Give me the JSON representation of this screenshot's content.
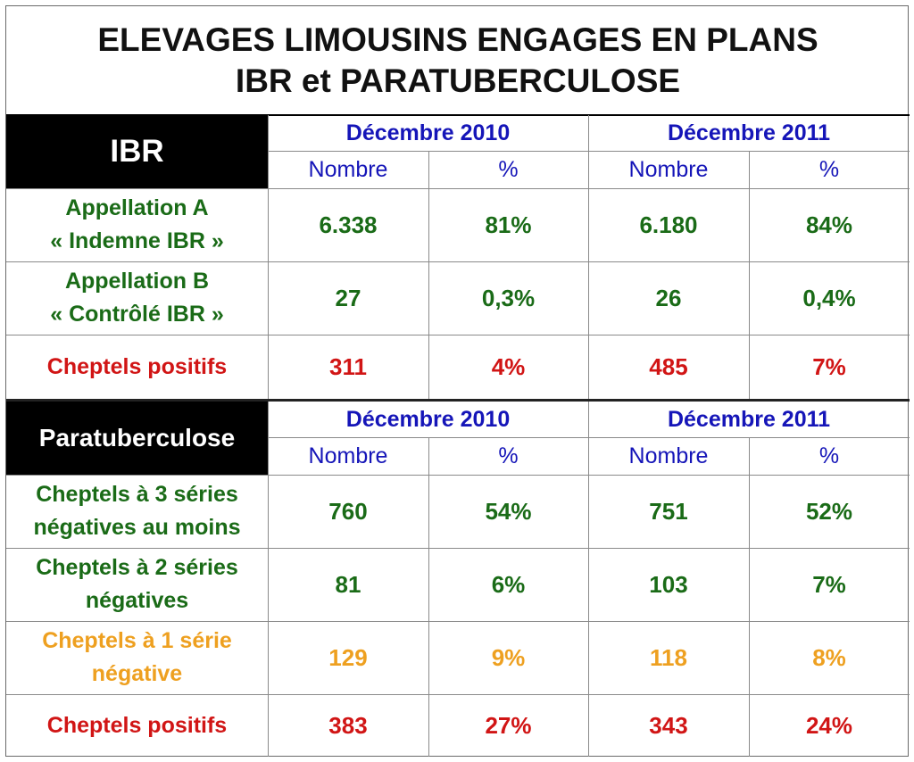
{
  "title": {
    "line1": "ELEVAGES LIMOUSINS ENGAGES EN PLANS",
    "line2": "IBR et PARATUBERCULOSE"
  },
  "colors": {
    "green": "#1a6b17",
    "red": "#d11515",
    "orange": "#eea020",
    "blue": "#1515b8",
    "black": "#000000"
  },
  "ibr": {
    "header": "IBR",
    "period1": "Décembre 2010",
    "period2": "Décembre 2011",
    "sub": {
      "nombre": "Nombre",
      "pct": "%"
    },
    "rows": [
      {
        "label1": "Appellation A",
        "label2": "« Indemne IBR »",
        "n2010": "6.338",
        "p2010": "81%",
        "n2011": "6.180",
        "p2011": "84%",
        "color": "green"
      },
      {
        "label1": "Appellation B",
        "label2": "« Contrôlé IBR »",
        "n2010": "27",
        "p2010": "0,3%",
        "n2011": "26",
        "p2011": "0,4%",
        "color": "green"
      },
      {
        "label1": "Cheptels positifs",
        "label2": "",
        "n2010": "311",
        "p2010": "4%",
        "n2011": "485",
        "p2011": "7%",
        "color": "red"
      }
    ]
  },
  "para": {
    "header": "Paratuberculose",
    "period1": "Décembre 2010",
    "period2": "Décembre 2011",
    "sub": {
      "nombre": "Nombre",
      "pct": "%"
    },
    "rows": [
      {
        "label1": "Cheptels à 3 séries",
        "label2": "négatives au moins",
        "n2010": "760",
        "p2010": "54%",
        "n2011": "751",
        "p2011": "52%",
        "color": "green"
      },
      {
        "label1": "Cheptels à 2 séries",
        "label2": "négatives",
        "n2010": "81",
        "p2010": "6%",
        "n2011": "103",
        "p2011": "7%",
        "color": "green"
      },
      {
        "label1": "Cheptels à 1 série",
        "label2": "négative",
        "n2010": "129",
        "p2010": "9%",
        "n2011": "118",
        "p2011": "8%",
        "color": "orange"
      },
      {
        "label1": "Cheptels positifs",
        "label2": "",
        "n2010": "383",
        "p2010": "27%",
        "n2011": "343",
        "p2011": "24%",
        "color": "red"
      }
    ]
  }
}
